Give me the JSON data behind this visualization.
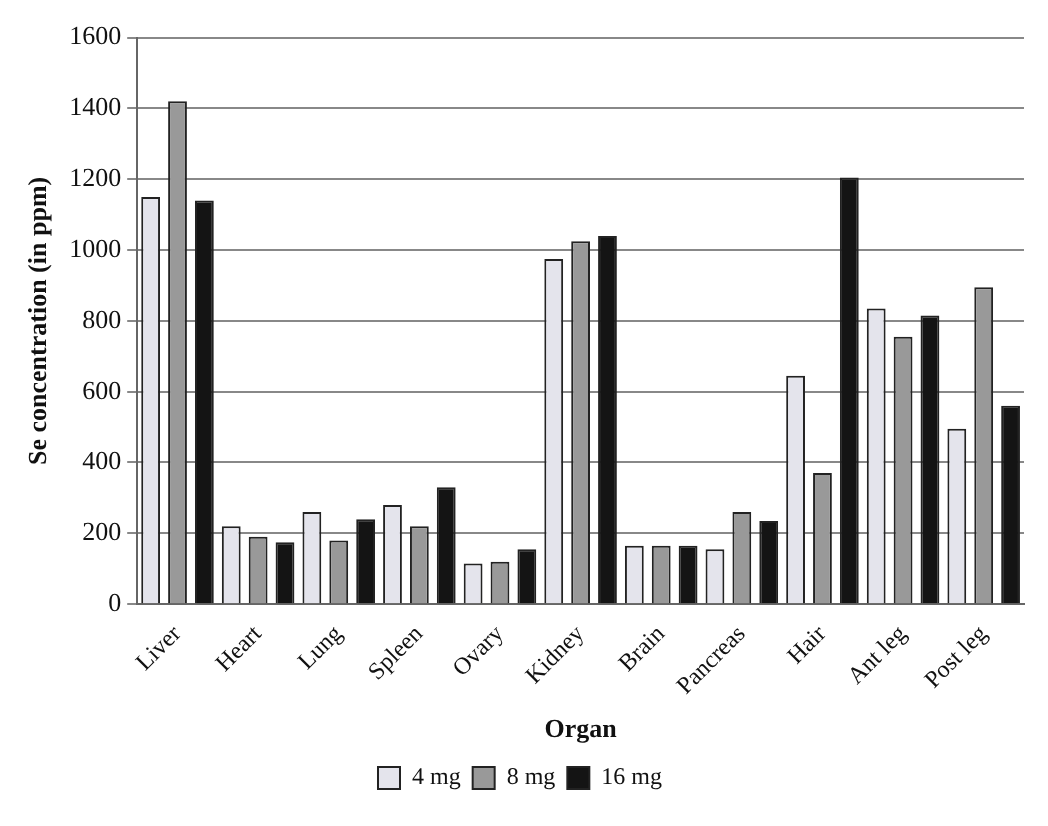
{
  "chart_data": {
    "type": "bar",
    "xlabel": "Organ",
    "ylabel": "Se concentration (in ppm)",
    "categories": [
      "Liver",
      "Heart",
      "Lung",
      "Spleen",
      "Ovary",
      "Kidney",
      "Brain",
      "Pancreas",
      "Hair",
      "Ant leg",
      "Post leg"
    ],
    "series": [
      {
        "name": "4 mg",
        "color": "#e4e4ec",
        "values": [
          1150,
          220,
          260,
          280,
          115,
          975,
          165,
          155,
          645,
          835,
          495
        ]
      },
      {
        "name": "8 mg",
        "color": "#999999",
        "values": [
          1420,
          190,
          180,
          220,
          120,
          1025,
          165,
          260,
          370,
          755,
          895
        ]
      },
      {
        "name": "16 mg",
        "color": "#141414",
        "values": [
          1140,
          175,
          240,
          330,
          155,
          1040,
          165,
          235,
          1205,
          815,
          560
        ]
      }
    ],
    "ylim": [
      0,
      1600
    ],
    "yticks": [
      0,
      200,
      400,
      600,
      800,
      1000,
      1200,
      1400,
      1600
    ],
    "grid": "y",
    "legend": "bottom"
  }
}
